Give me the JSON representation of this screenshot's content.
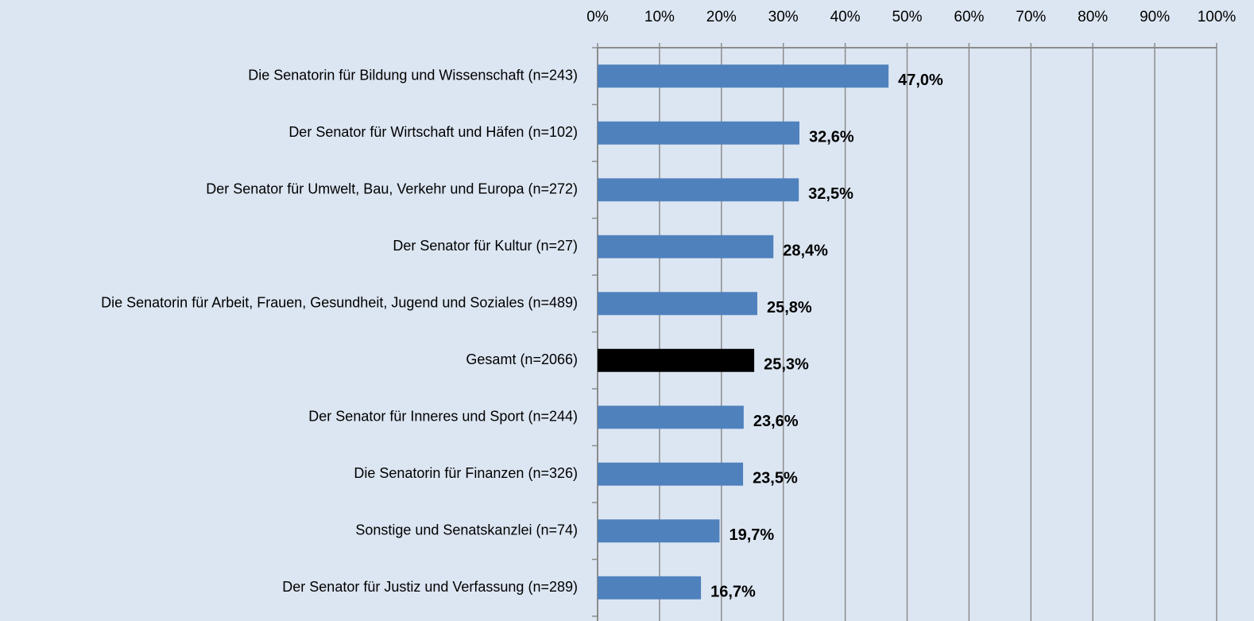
{
  "chart_data": {
    "type": "bar",
    "orientation": "horizontal",
    "categories": [
      "Die Senatorin für Bildung und Wissenschaft (n=243)",
      "Der Senator für Wirtschaft und Häfen (n=102)",
      "Der Senator für Umwelt, Bau, Verkehr und Europa (n=272)",
      "Der Senator für Kultur (n=27)",
      "Die Senatorin für Arbeit, Frauen, Gesundheit, Jugend und Soziales (n=489)",
      "Gesamt (n=2066)",
      "Der Senator für Inneres und Sport (n=244)",
      "Die Senatorin für Finanzen (n=326)",
      "Sonstige und Senatskanzlei (n=74)",
      "Der Senator für Justiz und Verfassung (n=289)"
    ],
    "values": [
      47.0,
      32.6,
      32.5,
      28.4,
      25.8,
      25.3,
      23.6,
      23.5,
      19.7,
      16.7
    ],
    "value_labels": [
      "47,0%",
      "32,6%",
      "32,5%",
      "28,4%",
      "25,8%",
      "25,3%",
      "23,6%",
      "23,5%",
      "19,7%",
      "16,7%"
    ],
    "colors": [
      "#4f81bd",
      "#4f81bd",
      "#4f81bd",
      "#4f81bd",
      "#4f81bd",
      "#000000",
      "#4f81bd",
      "#4f81bd",
      "#4f81bd",
      "#4f81bd"
    ],
    "xlim": [
      0,
      100
    ],
    "xticks": [
      {
        "value": 0,
        "label": "0%"
      },
      {
        "value": 10,
        "label": "10%"
      },
      {
        "value": 20,
        "label": "20%"
      },
      {
        "value": 30,
        "label": "30%"
      },
      {
        "value": 40,
        "label": "40%"
      },
      {
        "value": 50,
        "label": "50%"
      },
      {
        "value": 60,
        "label": "60%"
      },
      {
        "value": 70,
        "label": "70%"
      },
      {
        "value": 80,
        "label": "80%"
      },
      {
        "value": 90,
        "label": "90%"
      },
      {
        "value": 100,
        "label": "100%"
      }
    ],
    "grid": true
  }
}
